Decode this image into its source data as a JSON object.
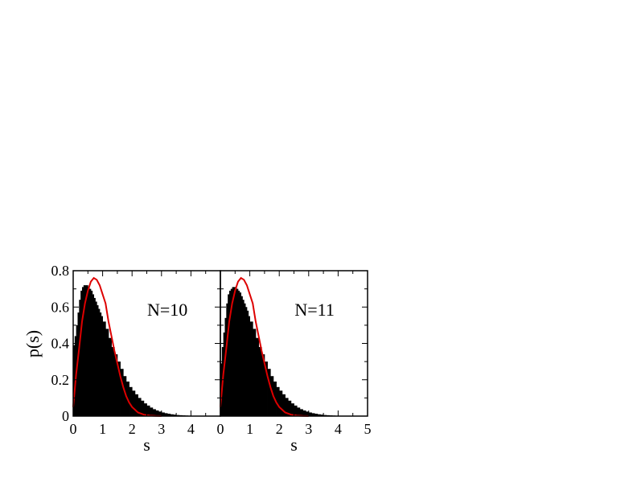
{
  "colors": {
    "histogram": "#000000",
    "curve": "#dd0000",
    "axes": "#000000",
    "background": "#ffffff"
  },
  "shared": {
    "ylabel": "p(s)",
    "ylim": [
      0,
      0.8
    ],
    "yticks": [
      0,
      0.2,
      0.4,
      0.6,
      0.8
    ],
    "ytick_labels": [
      "0",
      "0.2",
      "0.4",
      "0.6",
      "0.8"
    ]
  },
  "chart_data": [
    {
      "type": "bar",
      "panel": "left",
      "annotation": "N=10",
      "xlabel": "s",
      "xlim": [
        0,
        5
      ],
      "xticks": [
        0,
        1,
        2,
        3,
        4
      ],
      "xtick_labels": [
        "0",
        "1",
        "2",
        "3",
        "4"
      ],
      "histogram": {
        "x": [
          0,
          0.05,
          0.1,
          0.15,
          0.2,
          0.25,
          0.3,
          0.35,
          0.4,
          0.45,
          0.5,
          0.55,
          0.6,
          0.65,
          0.7,
          0.75,
          0.8,
          0.85,
          0.9,
          0.95,
          1.0,
          1.1,
          1.2,
          1.3,
          1.4,
          1.5,
          1.6,
          1.7,
          1.8,
          1.9,
          2.0,
          2.1,
          2.2,
          2.3,
          2.4,
          2.5,
          2.6,
          2.7,
          2.8,
          2.9,
          3.0,
          3.1,
          3.2,
          3.3,
          3.4,
          3.5,
          3.6,
          3.7,
          3.8,
          3.9,
          4.0,
          4.2,
          4.4,
          4.6,
          4.8,
          5.0
        ],
        "y": [
          0.39,
          0.44,
          0.5,
          0.57,
          0.64,
          0.69,
          0.71,
          0.72,
          0.72,
          0.72,
          0.71,
          0.7,
          0.69,
          0.67,
          0.65,
          0.63,
          0.61,
          0.59,
          0.57,
          0.55,
          0.52,
          0.48,
          0.43,
          0.38,
          0.34,
          0.3,
          0.26,
          0.22,
          0.19,
          0.16,
          0.14,
          0.12,
          0.1,
          0.085,
          0.07,
          0.058,
          0.047,
          0.038,
          0.031,
          0.025,
          0.02,
          0.016,
          0.013,
          0.01,
          0.008,
          0.006,
          0.005,
          0.004,
          0.003,
          0.002,
          0.002,
          0.001,
          0.001,
          0.0005,
          0.0003,
          0.0002
        ]
      },
      "curve": {
        "x": [
          0,
          0.1,
          0.2,
          0.3,
          0.4,
          0.5,
          0.6,
          0.7,
          0.8,
          0.9,
          1.0,
          1.1,
          1.2,
          1.3,
          1.4,
          1.5,
          1.6,
          1.7,
          1.8,
          1.9,
          2.0,
          2.2,
          2.4,
          2.6,
          2.8,
          3.0
        ],
        "y": [
          0.05,
          0.23,
          0.37,
          0.52,
          0.62,
          0.69,
          0.74,
          0.76,
          0.75,
          0.72,
          0.67,
          0.62,
          0.52,
          0.44,
          0.36,
          0.29,
          0.22,
          0.16,
          0.11,
          0.075,
          0.05,
          0.02,
          0.008,
          0.003,
          0.001,
          0.0003
        ]
      }
    },
    {
      "type": "bar",
      "panel": "right",
      "annotation": "N=11",
      "xlabel": "s",
      "xlim": [
        0,
        5
      ],
      "xticks": [
        0,
        1,
        2,
        3,
        4,
        5
      ],
      "xtick_labels": [
        "0",
        "1",
        "2",
        "3",
        "4",
        "5"
      ],
      "histogram": {
        "x": [
          0,
          0.05,
          0.1,
          0.15,
          0.2,
          0.25,
          0.3,
          0.35,
          0.4,
          0.45,
          0.5,
          0.55,
          0.6,
          0.65,
          0.7,
          0.75,
          0.8,
          0.85,
          0.9,
          0.95,
          1.0,
          1.1,
          1.2,
          1.3,
          1.4,
          1.5,
          1.6,
          1.7,
          1.8,
          1.9,
          2.0,
          2.1,
          2.2,
          2.3,
          2.4,
          2.5,
          2.6,
          2.7,
          2.8,
          2.9,
          3.0,
          3.1,
          3.2,
          3.3,
          3.4,
          3.5,
          3.6,
          3.7,
          3.8,
          3.9,
          4.0,
          4.2,
          4.4,
          4.6,
          4.8,
          5.0
        ],
        "y": [
          0.29,
          0.38,
          0.46,
          0.54,
          0.62,
          0.67,
          0.69,
          0.7,
          0.71,
          0.71,
          0.71,
          0.7,
          0.69,
          0.68,
          0.66,
          0.64,
          0.62,
          0.6,
          0.58,
          0.55,
          0.52,
          0.48,
          0.43,
          0.38,
          0.34,
          0.3,
          0.26,
          0.22,
          0.19,
          0.16,
          0.14,
          0.12,
          0.1,
          0.085,
          0.07,
          0.058,
          0.047,
          0.038,
          0.031,
          0.025,
          0.02,
          0.016,
          0.013,
          0.01,
          0.008,
          0.006,
          0.005,
          0.004,
          0.003,
          0.002,
          0.002,
          0.001,
          0.001,
          0.0005,
          0.0003,
          0.0002
        ]
      },
      "curve": {
        "x": [
          0,
          0.1,
          0.2,
          0.3,
          0.4,
          0.5,
          0.6,
          0.7,
          0.8,
          0.9,
          1.0,
          1.1,
          1.2,
          1.3,
          1.4,
          1.5,
          1.6,
          1.7,
          1.8,
          1.9,
          2.0,
          2.2,
          2.4,
          2.6,
          2.8,
          3.0
        ],
        "y": [
          0.05,
          0.23,
          0.37,
          0.52,
          0.62,
          0.69,
          0.74,
          0.76,
          0.75,
          0.72,
          0.67,
          0.62,
          0.52,
          0.44,
          0.36,
          0.29,
          0.22,
          0.16,
          0.11,
          0.075,
          0.05,
          0.02,
          0.008,
          0.003,
          0.001,
          0.0003
        ]
      }
    }
  ]
}
